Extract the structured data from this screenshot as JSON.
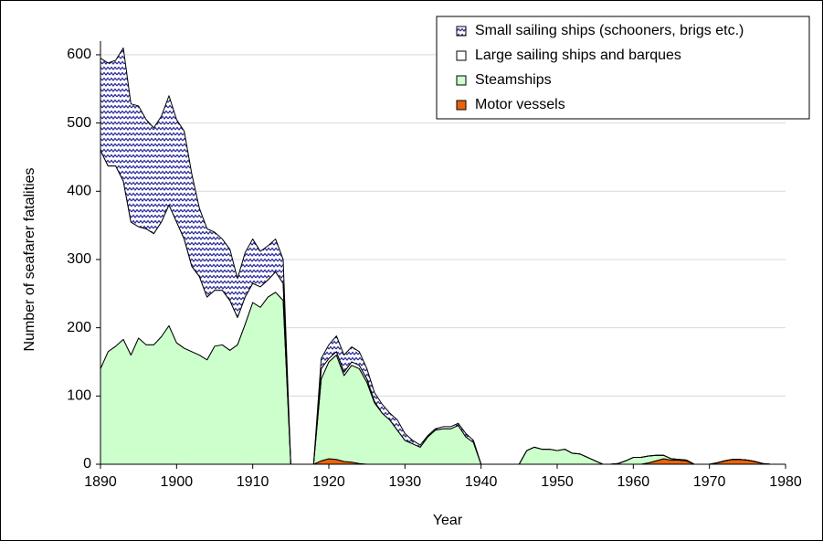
{
  "chart_data": {
    "type": "stacked_area",
    "x_label": "Year",
    "y_label": "Number of seafarer fatalities",
    "xlim": [
      1890,
      1980
    ],
    "xticks": [
      1890,
      1900,
      1910,
      1920,
      1930,
      1940,
      1950,
      1960,
      1970,
      1980
    ],
    "ylim": [
      0,
      620
    ],
    "yticks": [
      0,
      100,
      200,
      300,
      400,
      500,
      600
    ],
    "grid": true,
    "legend": "top-right",
    "x": [
      1890,
      1891,
      1892,
      1893,
      1894,
      1895,
      1896,
      1897,
      1898,
      1899,
      1900,
      1901,
      1902,
      1903,
      1904,
      1905,
      1906,
      1907,
      1908,
      1909,
      1910,
      1911,
      1912,
      1913,
      1914,
      1915,
      1916,
      1917,
      1918,
      1919,
      1920,
      1921,
      1922,
      1923,
      1924,
      1925,
      1926,
      1927,
      1928,
      1929,
      1930,
      1931,
      1932,
      1933,
      1934,
      1935,
      1936,
      1937,
      1938,
      1939,
      1940,
      1941,
      1942,
      1943,
      1944,
      1945,
      1946,
      1947,
      1948,
      1949,
      1950,
      1951,
      1952,
      1953,
      1954,
      1955,
      1956,
      1957,
      1958,
      1959,
      1960,
      1961,
      1962,
      1963,
      1964,
      1965,
      1966,
      1967,
      1968,
      1969,
      1970,
      1971,
      1972,
      1973,
      1974,
      1975,
      1976,
      1977,
      1978,
      1979
    ],
    "series": [
      {
        "name": "Small sailing ships (schooners, brigs etc.)",
        "color": "#2b2b9a",
        "values": [
          135,
          151,
          155,
          195,
          173,
          177,
          160,
          155,
          155,
          160,
          150,
          158,
          135,
          100,
          100,
          85,
          75,
          75,
          57,
          65,
          65,
          52,
          50,
          48,
          35,
          0,
          0,
          0,
          0,
          15,
          20,
          23,
          25,
          22,
          20,
          15,
          13,
          13,
          10,
          15,
          10,
          5,
          3,
          2,
          2,
          3,
          3,
          3,
          5,
          3,
          0,
          0,
          0,
          0,
          0,
          0,
          0,
          0,
          0,
          0,
          0,
          0,
          0,
          0,
          0,
          0,
          0,
          0,
          0,
          0,
          0,
          0,
          0,
          0,
          0,
          0,
          0,
          0,
          0,
          0,
          0,
          0,
          0,
          0,
          0,
          0,
          0,
          0,
          0,
          0
        ]
      },
      {
        "name": "Large sailing ships and barques",
        "color": "#ffffff",
        "values": [
          320,
          272,
          264,
          232,
          195,
          163,
          170,
          163,
          168,
          177,
          177,
          160,
          125,
          115,
          92,
          82,
          80,
          73,
          40,
          40,
          28,
          30,
          25,
          30,
          25,
          0,
          0,
          0,
          0,
          15,
          5,
          5,
          5,
          5,
          5,
          5,
          2,
          0,
          0,
          0,
          0,
          0,
          0,
          0,
          0,
          0,
          0,
          0,
          0,
          0,
          0,
          0,
          0,
          0,
          0,
          0,
          0,
          0,
          0,
          0,
          0,
          0,
          0,
          0,
          0,
          0,
          0,
          0,
          0,
          0,
          0,
          0,
          0,
          0,
          0,
          0,
          0,
          0,
          0,
          0,
          0,
          0,
          0,
          0,
          0,
          0,
          0,
          0,
          0,
          0
        ]
      },
      {
        "name": "Steamships",
        "color": "#ccffcc",
        "values": [
          140,
          165,
          173,
          183,
          160,
          185,
          175,
          175,
          187,
          203,
          178,
          170,
          165,
          160,
          153,
          173,
          175,
          167,
          175,
          205,
          237,
          230,
          245,
          252,
          240,
          0,
          0,
          0,
          0,
          120,
          142,
          153,
          126,
          142,
          139,
          120,
          90,
          75,
          65,
          50,
          35,
          30,
          25,
          40,
          50,
          52,
          52,
          57,
          40,
          32,
          0,
          0,
          0,
          0,
          0,
          0,
          20,
          25,
          22,
          22,
          20,
          22,
          16,
          15,
          10,
          5,
          0,
          0,
          1,
          5,
          10,
          10,
          10,
          8,
          5,
          2,
          1,
          1,
          0,
          0,
          0,
          0,
          0,
          0,
          0,
          0,
          0,
          0,
          0,
          0
        ]
      },
      {
        "name": "Motor vessels",
        "color": "#e8640c",
        "values": [
          0,
          0,
          0,
          0,
          0,
          0,
          0,
          0,
          0,
          0,
          0,
          0,
          0,
          0,
          0,
          0,
          0,
          0,
          0,
          0,
          0,
          0,
          0,
          0,
          0,
          0,
          0,
          0,
          0,
          5,
          8,
          7,
          4,
          3,
          1,
          0,
          0,
          0,
          0,
          0,
          0,
          0,
          0,
          0,
          0,
          0,
          0,
          0,
          0,
          0,
          0,
          0,
          0,
          0,
          0,
          0,
          0,
          0,
          0,
          0,
          0,
          0,
          0,
          0,
          0,
          0,
          0,
          0,
          0,
          0,
          0,
          0,
          2,
          5,
          8,
          6,
          6,
          5,
          0,
          0,
          0,
          2,
          5,
          7,
          7,
          6,
          4,
          1,
          0,
          0
        ]
      }
    ]
  }
}
